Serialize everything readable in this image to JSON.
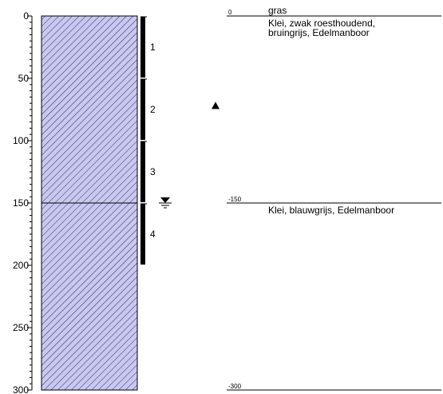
{
  "colors": {
    "hatch_fill": "#c8c8f0",
    "hatch_line": "#2a2a60",
    "line": "#000000"
  },
  "depth_axis": {
    "max": 300,
    "ticks": [
      0,
      50,
      100,
      150,
      200,
      250,
      300
    ]
  },
  "soil_column": {
    "top": 0,
    "bottom": 300,
    "boundaries": [
      150
    ]
  },
  "samples": [
    {
      "label": "1",
      "top": 0,
      "bottom": 50
    },
    {
      "label": "2",
      "top": 50,
      "bottom": 100
    },
    {
      "label": "3",
      "top": 100,
      "bottom": 150
    },
    {
      "label": "4",
      "top": 150,
      "bottom": 200
    }
  ],
  "markers": {
    "triangle_depth": 72,
    "water_level_depth": 150
  },
  "layers": [
    {
      "depth_label": "0",
      "depth": 0,
      "lines": [
        "gras",
        "Klei, zwak roesthoudend,",
        "bruingrijs, Edelmanboor"
      ]
    },
    {
      "depth_label": "-150",
      "depth": 150,
      "lines": [
        "Klei, blauwgrijs, Edelmanboor"
      ]
    },
    {
      "depth_label": "-300",
      "depth": 300,
      "lines": []
    }
  ]
}
